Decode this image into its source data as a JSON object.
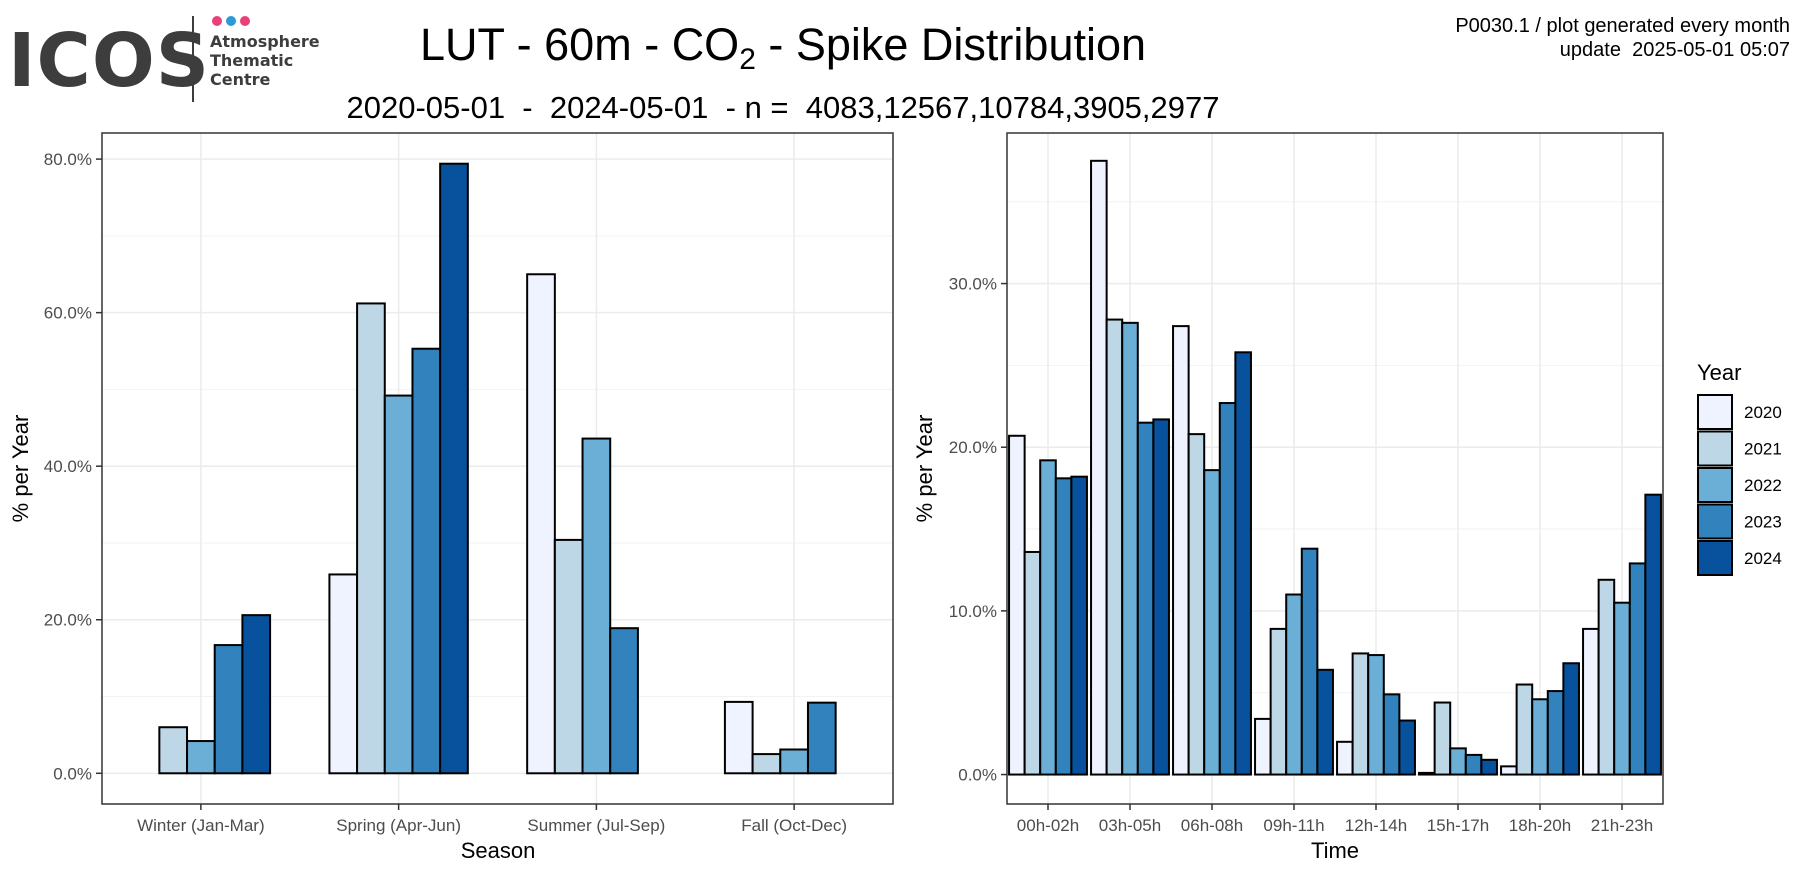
{
  "logo": {
    "word": "ICOS",
    "line1": "Atmosphere",
    "line2": "Thematic",
    "line3": "Centre",
    "dot_colors": [
      "#e8417a",
      "#2a9ad9",
      "#e8417a"
    ]
  },
  "header": {
    "title_prefix": "LUT - 60m - CO",
    "title_sub": "2",
    "title_suffix": " - Spike Distribution",
    "subtitle": "2020-05-01  -  2024-05-01  - n =  4083,12567,10784,3905,2977",
    "meta_line1": "P0030.1 / plot generated every month",
    "meta_line2": "update  2025-05-01 05:07"
  },
  "legend": {
    "title": "Year",
    "items": [
      {
        "label": "2020",
        "color": "#eff3ff"
      },
      {
        "label": "2021",
        "color": "#bdd7e7"
      },
      {
        "label": "2022",
        "color": "#6baed6"
      },
      {
        "label": "2023",
        "color": "#3182bd"
      },
      {
        "label": "2024",
        "color": "#08519c"
      }
    ]
  },
  "chart_data": [
    {
      "type": "bar",
      "xlabel": "Season",
      "ylabel": "% per Year",
      "ylim": [
        -4,
        83.4
      ],
      "yticks": [
        0,
        20,
        40,
        60,
        80
      ],
      "ytick_labels": [
        "0.0%",
        "20.0%",
        "40.0%",
        "60.0%",
        "80.0%"
      ],
      "grid": true,
      "categories": [
        "Winter (Jan-Mar)",
        "Spring (Apr-Jun)",
        "Summer (Jul-Sep)",
        "Fall (Oct-Dec)"
      ],
      "series": [
        {
          "name": "2020",
          "values": [
            null,
            25.9,
            65.0,
            9.3
          ]
        },
        {
          "name": "2021",
          "values": [
            6.0,
            61.2,
            30.4,
            2.5
          ]
        },
        {
          "name": "2022",
          "values": [
            4.2,
            49.2,
            43.6,
            3.1
          ]
        },
        {
          "name": "2023",
          "values": [
            16.7,
            55.3,
            18.9,
            9.2
          ]
        },
        {
          "name": "2024",
          "values": [
            20.6,
            79.4,
            null,
            null
          ]
        }
      ]
    },
    {
      "type": "bar",
      "xlabel": "Time",
      "ylabel": "% per Year",
      "ylim": [
        -1.8,
        39.2
      ],
      "yticks": [
        0,
        10,
        20,
        30
      ],
      "ytick_labels": [
        "0.0%",
        "10.0%",
        "20.0%",
        "30.0%"
      ],
      "grid": true,
      "categories": [
        "00h-02h",
        "03h-05h",
        "06h-08h",
        "09h-11h",
        "12h-14h",
        "15h-17h",
        "18h-20h",
        "21h-23h"
      ],
      "series": [
        {
          "name": "2020",
          "values": [
            20.7,
            37.5,
            27.4,
            3.4,
            2.0,
            0.1,
            0.5,
            8.9
          ]
        },
        {
          "name": "2021",
          "values": [
            13.6,
            27.8,
            20.8,
            8.9,
            7.4,
            4.4,
            5.5,
            11.9
          ]
        },
        {
          "name": "2022",
          "values": [
            19.2,
            27.6,
            18.6,
            11.0,
            7.3,
            1.6,
            4.6,
            10.5
          ]
        },
        {
          "name": "2023",
          "values": [
            18.1,
            21.5,
            22.7,
            13.8,
            4.9,
            1.2,
            5.1,
            12.9
          ]
        },
        {
          "name": "2024",
          "values": [
            18.2,
            21.7,
            25.8,
            6.4,
            3.3,
            0.9,
            6.8,
            17.1
          ]
        }
      ]
    }
  ]
}
